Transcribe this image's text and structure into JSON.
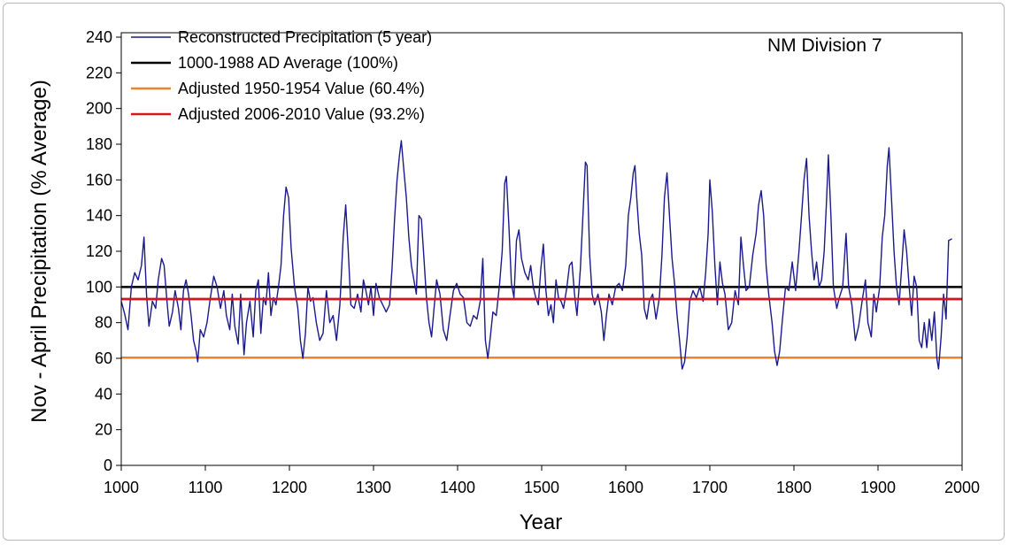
{
  "chart_data": {
    "type": "line",
    "annotation": "NM Division 7",
    "xlabel": "Year",
    "ylabel": "Nov - April Precipitation (% Average)",
    "xlim": [
      1000,
      2000
    ],
    "ylim": [
      0,
      240
    ],
    "xticks": [
      1000,
      1100,
      1200,
      1300,
      1400,
      1500,
      1600,
      1700,
      1800,
      1900,
      2000
    ],
    "yticks": [
      0,
      20,
      40,
      60,
      80,
      100,
      120,
      140,
      160,
      180,
      200,
      220,
      240
    ],
    "grid": false,
    "legend_position": "top-left",
    "series": [
      {
        "name": "Reconstructed Precipitation (5 year)",
        "color": "#1a1a8c",
        "points": [
          [
            1000,
            92
          ],
          [
            1004,
            85
          ],
          [
            1008,
            76
          ],
          [
            1012,
            100
          ],
          [
            1016,
            108
          ],
          [
            1020,
            104
          ],
          [
            1024,
            112
          ],
          [
            1027,
            128
          ],
          [
            1030,
            96
          ],
          [
            1033,
            78
          ],
          [
            1037,
            92
          ],
          [
            1041,
            88
          ],
          [
            1044,
            104
          ],
          [
            1048,
            116
          ],
          [
            1051,
            112
          ],
          [
            1054,
            94
          ],
          [
            1057,
            78
          ],
          [
            1061,
            86
          ],
          [
            1064,
            98
          ],
          [
            1068,
            88
          ],
          [
            1071,
            76
          ],
          [
            1074,
            98
          ],
          [
            1077,
            104
          ],
          [
            1080,
            96
          ],
          [
            1083,
            84
          ],
          [
            1086,
            70
          ],
          [
            1089,
            64
          ],
          [
            1091,
            58
          ],
          [
            1094,
            76
          ],
          [
            1098,
            72
          ],
          [
            1102,
            80
          ],
          [
            1106,
            94
          ],
          [
            1110,
            106
          ],
          [
            1114,
            100
          ],
          [
            1118,
            88
          ],
          [
            1122,
            98
          ],
          [
            1125,
            84
          ],
          [
            1129,
            76
          ],
          [
            1132,
            96
          ],
          [
            1135,
            78
          ],
          [
            1139,
            68
          ],
          [
            1142,
            96
          ],
          [
            1146,
            62
          ],
          [
            1149,
            80
          ],
          [
            1153,
            92
          ],
          [
            1157,
            72
          ],
          [
            1160,
            98
          ],
          [
            1163,
            104
          ],
          [
            1166,
            74
          ],
          [
            1169,
            94
          ],
          [
            1172,
            90
          ],
          [
            1175,
            108
          ],
          [
            1178,
            84
          ],
          [
            1181,
            94
          ],
          [
            1184,
            90
          ],
          [
            1187,
            100
          ],
          [
            1190,
            112
          ],
          [
            1193,
            140
          ],
          [
            1196,
            156
          ],
          [
            1199,
            150
          ],
          [
            1202,
            122
          ],
          [
            1206,
            100
          ],
          [
            1210,
            88
          ],
          [
            1213,
            70
          ],
          [
            1216,
            60
          ],
          [
            1219,
            74
          ],
          [
            1222,
            100
          ],
          [
            1225,
            92
          ],
          [
            1228,
            94
          ],
          [
            1232,
            80
          ],
          [
            1236,
            70
          ],
          [
            1240,
            74
          ],
          [
            1244,
            98
          ],
          [
            1248,
            80
          ],
          [
            1252,
            84
          ],
          [
            1256,
            70
          ],
          [
            1260,
            90
          ],
          [
            1264,
            128
          ],
          [
            1267,
            146
          ],
          [
            1270,
            120
          ],
          [
            1273,
            90
          ],
          [
            1277,
            88
          ],
          [
            1281,
            96
          ],
          [
            1285,
            86
          ],
          [
            1288,
            104
          ],
          [
            1291,
            98
          ],
          [
            1294,
            90
          ],
          [
            1297,
            100
          ],
          [
            1300,
            84
          ],
          [
            1303,
            102
          ],
          [
            1307,
            94
          ],
          [
            1311,
            90
          ],
          [
            1315,
            86
          ],
          [
            1319,
            90
          ],
          [
            1322,
            110
          ],
          [
            1325,
            138
          ],
          [
            1328,
            160
          ],
          [
            1331,
            174
          ],
          [
            1333,
            182
          ],
          [
            1336,
            166
          ],
          [
            1339,
            150
          ],
          [
            1342,
            128
          ],
          [
            1345,
            112
          ],
          [
            1348,
            104
          ],
          [
            1351,
            96
          ],
          [
            1354,
            140
          ],
          [
            1357,
            138
          ],
          [
            1360,
            116
          ],
          [
            1363,
            94
          ],
          [
            1366,
            80
          ],
          [
            1369,
            72
          ],
          [
            1372,
            88
          ],
          [
            1375,
            104
          ],
          [
            1379,
            96
          ],
          [
            1383,
            76
          ],
          [
            1387,
            70
          ],
          [
            1391,
            84
          ],
          [
            1395,
            98
          ],
          [
            1399,
            102
          ],
          [
            1403,
            96
          ],
          [
            1407,
            94
          ],
          [
            1411,
            80
          ],
          [
            1415,
            78
          ],
          [
            1419,
            84
          ],
          [
            1423,
            82
          ],
          [
            1427,
            92
          ],
          [
            1430,
            116
          ],
          [
            1433,
            70
          ],
          [
            1436,
            60
          ],
          [
            1439,
            72
          ],
          [
            1442,
            86
          ],
          [
            1446,
            84
          ],
          [
            1450,
            102
          ],
          [
            1453,
            120
          ],
          [
            1456,
            158
          ],
          [
            1458,
            162
          ],
          [
            1461,
            134
          ],
          [
            1464,
            102
          ],
          [
            1467,
            94
          ],
          [
            1470,
            126
          ],
          [
            1473,
            132
          ],
          [
            1476,
            116
          ],
          [
            1480,
            108
          ],
          [
            1484,
            104
          ],
          [
            1487,
            112
          ],
          [
            1490,
            100
          ],
          [
            1493,
            94
          ],
          [
            1496,
            90
          ],
          [
            1499,
            110
          ],
          [
            1502,
            124
          ],
          [
            1505,
            98
          ],
          [
            1508,
            84
          ],
          [
            1511,
            90
          ],
          [
            1514,
            80
          ],
          [
            1517,
            104
          ],
          [
            1520,
            94
          ],
          [
            1523,
            92
          ],
          [
            1526,
            88
          ],
          [
            1530,
            100
          ],
          [
            1533,
            112
          ],
          [
            1536,
            114
          ],
          [
            1539,
            96
          ],
          [
            1542,
            84
          ],
          [
            1546,
            110
          ],
          [
            1549,
            140
          ],
          [
            1552,
            170
          ],
          [
            1554,
            168
          ],
          [
            1557,
            118
          ],
          [
            1560,
            96
          ],
          [
            1563,
            90
          ],
          [
            1567,
            96
          ],
          [
            1571,
            86
          ],
          [
            1574,
            70
          ],
          [
            1577,
            84
          ],
          [
            1580,
            96
          ],
          [
            1584,
            90
          ],
          [
            1588,
            100
          ],
          [
            1592,
            102
          ],
          [
            1596,
            98
          ],
          [
            1600,
            112
          ],
          [
            1603,
            140
          ],
          [
            1606,
            150
          ],
          [
            1609,
            164
          ],
          [
            1611,
            168
          ],
          [
            1613,
            150
          ],
          [
            1616,
            130
          ],
          [
            1619,
            118
          ],
          [
            1622,
            88
          ],
          [
            1625,
            82
          ],
          [
            1628,
            92
          ],
          [
            1632,
            96
          ],
          [
            1636,
            82
          ],
          [
            1640,
            94
          ],
          [
            1643,
            118
          ],
          [
            1646,
            150
          ],
          [
            1649,
            164
          ],
          [
            1652,
            140
          ],
          [
            1655,
            116
          ],
          [
            1658,
            102
          ],
          [
            1661,
            84
          ],
          [
            1664,
            70
          ],
          [
            1667,
            54
          ],
          [
            1670,
            58
          ],
          [
            1673,
            72
          ],
          [
            1676,
            92
          ],
          [
            1680,
            98
          ],
          [
            1684,
            94
          ],
          [
            1688,
            100
          ],
          [
            1692,
            92
          ],
          [
            1695,
            108
          ],
          [
            1698,
            130
          ],
          [
            1700,
            160
          ],
          [
            1703,
            142
          ],
          [
            1706,
            112
          ],
          [
            1709,
            90
          ],
          [
            1712,
            114
          ],
          [
            1715,
            102
          ],
          [
            1718,
            96
          ],
          [
            1722,
            76
          ],
          [
            1726,
            80
          ],
          [
            1730,
            98
          ],
          [
            1734,
            90
          ],
          [
            1737,
            128
          ],
          [
            1740,
            112
          ],
          [
            1743,
            98
          ],
          [
            1747,
            100
          ],
          [
            1751,
            118
          ],
          [
            1755,
            130
          ],
          [
            1758,
            146
          ],
          [
            1761,
            154
          ],
          [
            1764,
            140
          ],
          [
            1767,
            112
          ],
          [
            1770,
            96
          ],
          [
            1774,
            80
          ],
          [
            1777,
            64
          ],
          [
            1780,
            56
          ],
          [
            1783,
            64
          ],
          [
            1786,
            80
          ],
          [
            1790,
            100
          ],
          [
            1794,
            98
          ],
          [
            1798,
            114
          ],
          [
            1802,
            98
          ],
          [
            1806,
            120
          ],
          [
            1809,
            140
          ],
          [
            1812,
            160
          ],
          [
            1815,
            172
          ],
          [
            1818,
            140
          ],
          [
            1821,
            120
          ],
          [
            1824,
            104
          ],
          [
            1827,
            114
          ],
          [
            1830,
            100
          ],
          [
            1833,
            104
          ],
          [
            1836,
            120
          ],
          [
            1839,
            150
          ],
          [
            1841,
            174
          ],
          [
            1844,
            140
          ],
          [
            1847,
            100
          ],
          [
            1851,
            88
          ],
          [
            1854,
            94
          ],
          [
            1858,
            100
          ],
          [
            1862,
            130
          ],
          [
            1865,
            100
          ],
          [
            1869,
            90
          ],
          [
            1873,
            70
          ],
          [
            1877,
            78
          ],
          [
            1881,
            92
          ],
          [
            1885,
            104
          ],
          [
            1888,
            80
          ],
          [
            1892,
            72
          ],
          [
            1895,
            96
          ],
          [
            1898,
            86
          ],
          [
            1902,
            100
          ],
          [
            1905,
            128
          ],
          [
            1908,
            140
          ],
          [
            1911,
            168
          ],
          [
            1913,
            178
          ],
          [
            1916,
            150
          ],
          [
            1919,
            120
          ],
          [
            1922,
            100
          ],
          [
            1925,
            90
          ],
          [
            1928,
            110
          ],
          [
            1931,
            132
          ],
          [
            1934,
            120
          ],
          [
            1937,
            100
          ],
          [
            1940,
            84
          ],
          [
            1943,
            106
          ],
          [
            1946,
            100
          ],
          [
            1949,
            70
          ],
          [
            1952,
            66
          ],
          [
            1955,
            80
          ],
          [
            1958,
            66
          ],
          [
            1961,
            82
          ],
          [
            1964,
            70
          ],
          [
            1967,
            86
          ],
          [
            1970,
            60
          ],
          [
            1972,
            54
          ],
          [
            1975,
            72
          ],
          [
            1978,
            96
          ],
          [
            1981,
            82
          ],
          [
            1984,
            126
          ],
          [
            1988,
            127
          ]
        ]
      },
      {
        "name": "1000-1988 AD Average (100%)",
        "color": "#000000",
        "y": 100
      },
      {
        "name": "Adjusted 1950-1954 Value (60.4%)",
        "color": "#f0822a",
        "y": 60.4
      },
      {
        "name": "Adjusted 2006-2010 Value (93.2%)",
        "color": "#d4151d",
        "y": 93.2
      }
    ]
  }
}
